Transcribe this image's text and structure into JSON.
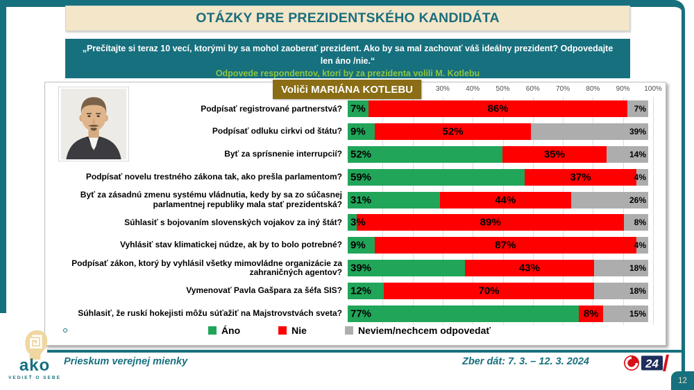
{
  "header": {
    "title": "OTÁZKY PRE PREZIDENTSKÉHO KANDIDÁTA"
  },
  "subtitle": {
    "line1": "„Prečítajte si teraz 10 vecí, ktorými by sa mohol zaoberať prezident. Ako by sa mal zachovať váš ideálny prezident? Odpovedajte len áno /nie.“",
    "line2": "Odpovede respondentov, ktorí by za prezidenta volili M. Kotlebu"
  },
  "chart_data": {
    "type": "bar",
    "orientation": "horizontal",
    "stacked": true,
    "title": "Voliči MARIÁNA KOTLEBU",
    "xlim": [
      0,
      100
    ],
    "axis_ticks": [
      "30%",
      "40%",
      "50%",
      "60%",
      "70%",
      "80%",
      "90%",
      "100%"
    ],
    "grid": true,
    "legend_position": "bottom",
    "categories": [
      "Podpísať registrované partnerstvá?",
      "Podpísať odluku cirkvi od štátu?",
      "Byť za sprísnenie interrupcií?",
      "Podpísať novelu trestného zákona tak, ako prešla parlamentom?",
      "Byť za zásadnú zmenu systému vládnutia, kedy by sa zo súčasnej parlamentnej republiky mala stať prezidentská?",
      "Súhlasiť s bojovaním slovenských vojakov za iný štát?",
      "Vyhlásiť stav klimatickej núdze, ak by to bolo potrebné?",
      "Podpísať zákon, ktorý by vyhlásil všetky mimovládne organizácie za zahraničných agentov?",
      "Vymenovať Pavla Gašpara za šéfa SIS?",
      "Súhlasiť, že ruskí hokejisti môžu súťažiť na Majstrovstvách sveta?"
    ],
    "series": [
      {
        "name": "Áno",
        "color": "#21A559",
        "values": [
          7,
          9,
          52,
          59,
          31,
          3,
          9,
          39,
          12,
          77
        ]
      },
      {
        "name": "Nie",
        "color": "#FE0000",
        "values": [
          86,
          52,
          35,
          37,
          44,
          89,
          87,
          43,
          70,
          8
        ]
      },
      {
        "name": "Neviem/nechcem odpovedať",
        "color": "#ADADAD",
        "values": [
          7,
          39,
          14,
          4,
          26,
          8,
          4,
          18,
          18,
          15
        ]
      }
    ]
  },
  "footer": {
    "brand": {
      "name": "ako",
      "tagline": "VEDIEŤ O SEBE"
    },
    "left_text": "Prieskum verejnej mienky",
    "right_text": "Zber dát: 7. 3. – 12. 3. 2024",
    "tv_logo": "24",
    "page_number": "12"
  }
}
